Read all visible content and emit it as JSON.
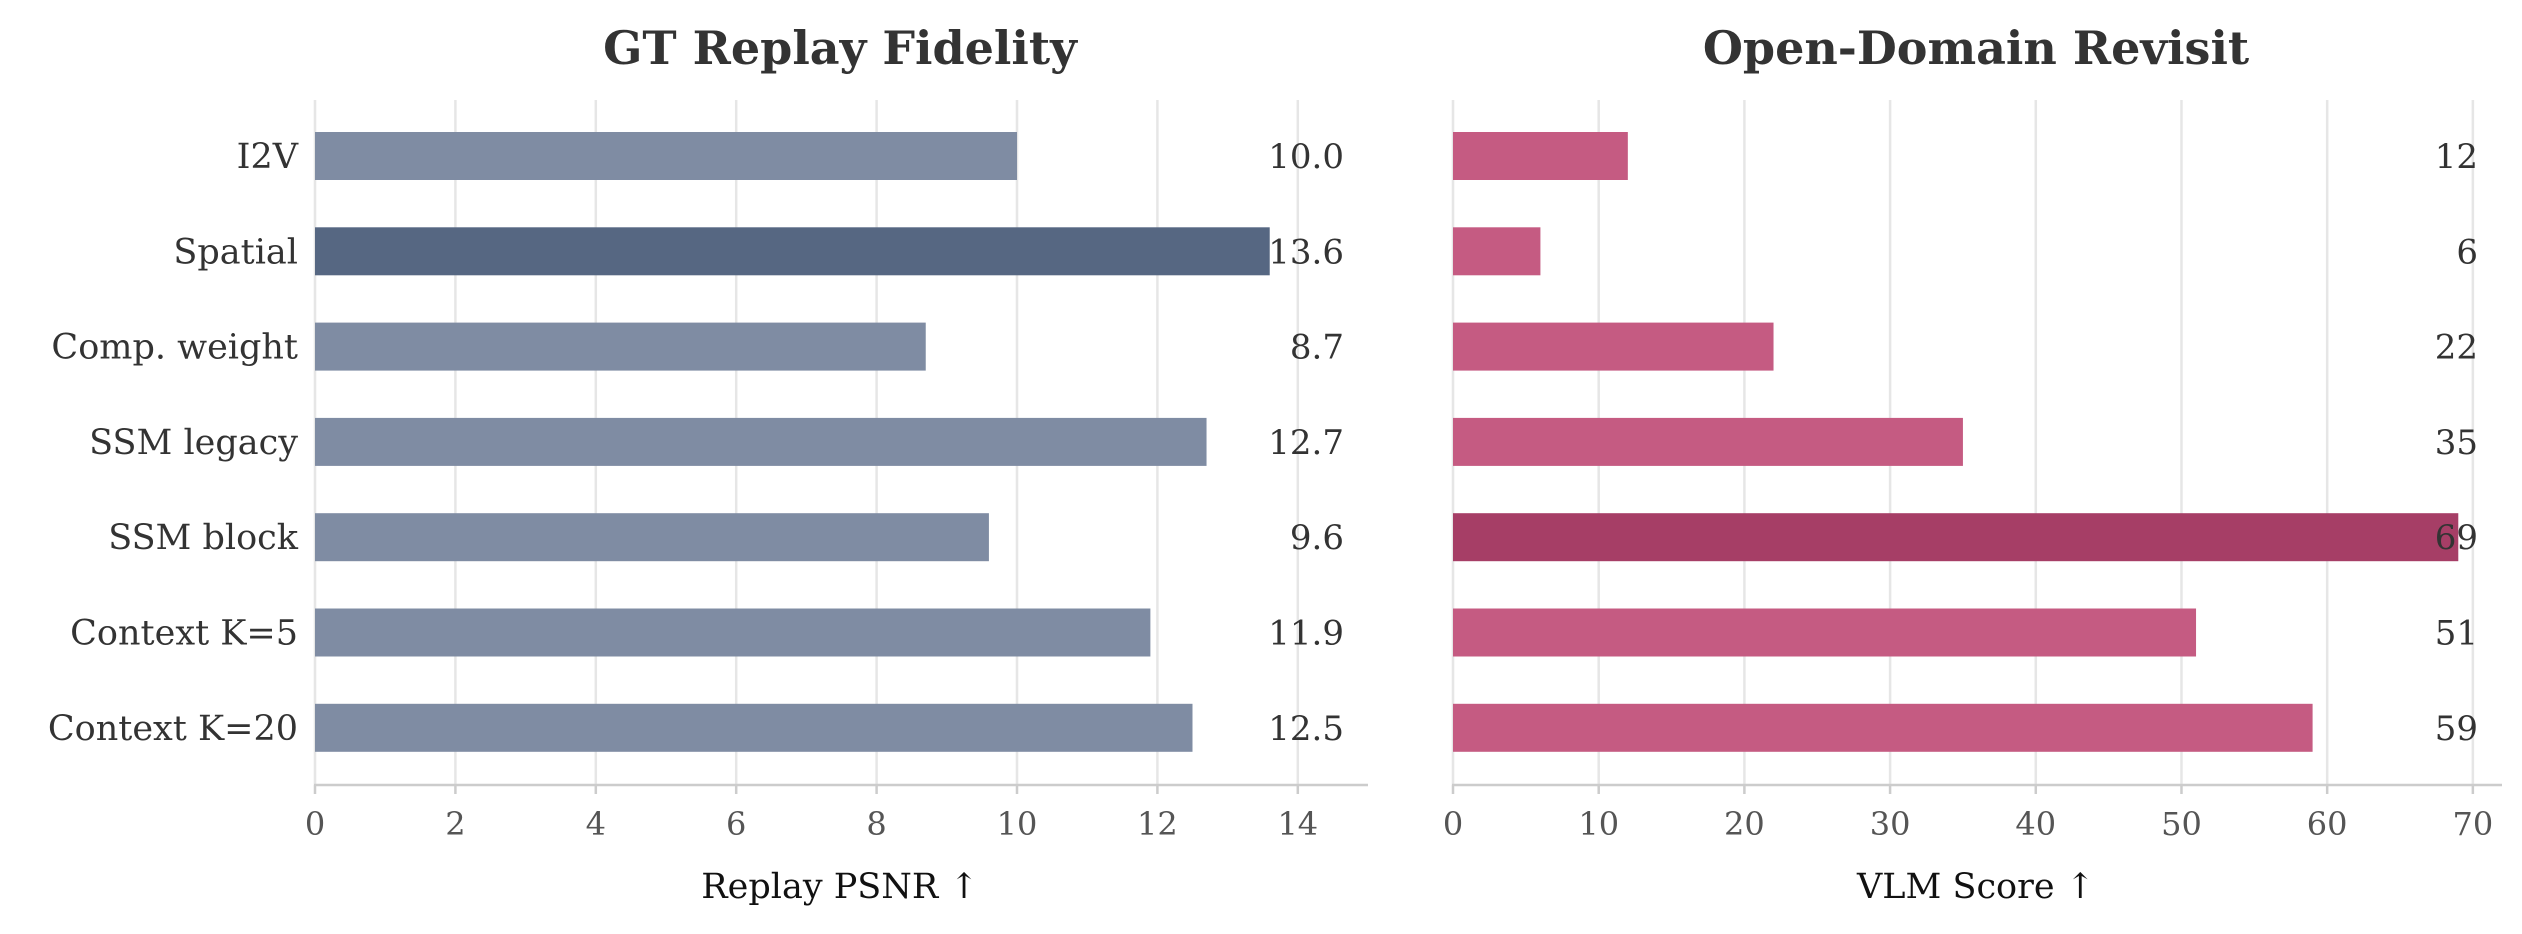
{
  "colors": {
    "left_bar": "#7f8ca3",
    "left_highlight": "#566782",
    "right_bar": "#c55b82",
    "right_highlight": "#a63e66"
  },
  "chart_data": [
    {
      "type": "bar",
      "orientation": "horizontal",
      "title": "GT Replay Fidelity",
      "xlabel": "Replay PSNR ↑",
      "categories": [
        "I2V",
        "Spatial",
        "Comp. weight",
        "SSM legacy",
        "SSM block",
        "Context K=5",
        "Context K=20"
      ],
      "values": [
        10.0,
        13.6,
        8.7,
        12.7,
        9.6,
        11.9,
        12.5
      ],
      "value_labels": [
        "10.0",
        "13.6",
        "8.7",
        "12.7",
        "9.6",
        "11.9",
        "12.5"
      ],
      "highlight_index": 1,
      "xlim": [
        0,
        15
      ],
      "xticks": [
        0,
        2,
        4,
        6,
        8,
        10,
        12,
        14
      ],
      "grid": true,
      "legend": "none"
    },
    {
      "type": "bar",
      "orientation": "horizontal",
      "title": "Open-Domain Revisit",
      "xlabel": "VLM Score ↑",
      "categories": [
        "I2V",
        "Spatial",
        "Comp. weight",
        "SSM legacy",
        "SSM block",
        "Context K=5",
        "Context K=20"
      ],
      "values": [
        12,
        6,
        22,
        35,
        69,
        51,
        59
      ],
      "value_labels": [
        "12",
        "6",
        "22",
        "35",
        "69",
        "51",
        "59"
      ],
      "highlight_index": 4,
      "xlim": [
        0,
        72
      ],
      "xticks": [
        0,
        10,
        20,
        30,
        40,
        50,
        60,
        70
      ],
      "grid": true,
      "legend": "none"
    }
  ]
}
